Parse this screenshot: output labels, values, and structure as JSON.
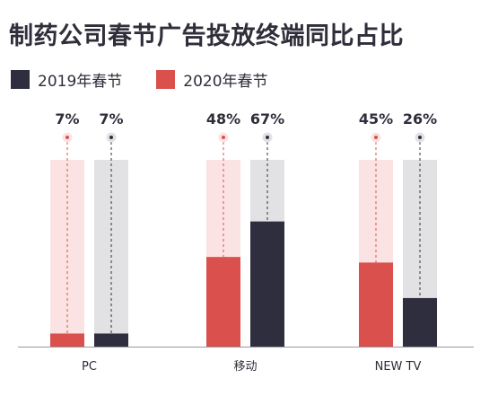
{
  "title": "制药公司春节广告投放终端同比占比",
  "colors": {
    "2019": "#2f2e3f",
    "2020": "#d9504d",
    "bg2019": "#e2e2e5",
    "bg2020": "#fbe3e3",
    "axis": "#9a9aa0"
  },
  "chart_data": {
    "type": "bar",
    "title": "制药公司春节广告投放终端同比占比",
    "categories": [
      "PC",
      "移动",
      "NEW TV"
    ],
    "series": [
      {
        "name": "2020年春节",
        "values": [
          7,
          48,
          45
        ],
        "labels": [
          "7%",
          "48%",
          "45%"
        ]
      },
      {
        "name": "2019年春节",
        "values": [
          7,
          67,
          26
        ],
        "labels": [
          "7%",
          "67%",
          "26%"
        ]
      }
    ],
    "ylim": [
      0,
      100
    ],
    "unit": "%",
    "legend_position": "top-left",
    "grid": false
  }
}
